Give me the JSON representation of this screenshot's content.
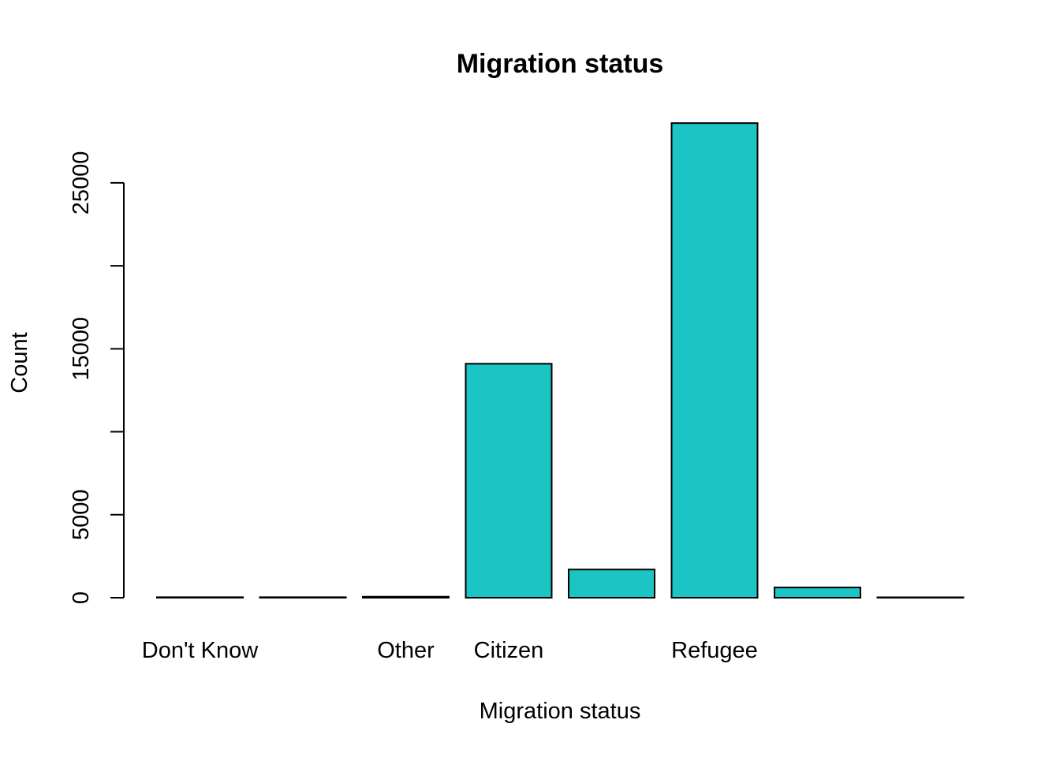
{
  "chart_data": {
    "type": "bar",
    "title": "Migration status",
    "xlabel": "Migration status",
    "ylabel": "Count",
    "categories": [
      "Don't Know",
      "",
      "Other",
      "Citizen",
      "",
      "Refugee",
      "",
      ""
    ],
    "values": [
      30,
      30,
      60,
      14100,
      1700,
      28600,
      620,
      10
    ],
    "yticks": [
      0,
      5000,
      10000,
      15000,
      20000,
      25000
    ],
    "ytick_labels": [
      "0",
      "5000",
      "",
      "15000",
      "",
      "25000"
    ],
    "ylim": [
      0,
      29000
    ],
    "bar_color": "#1ac5c3",
    "grid": false
  }
}
